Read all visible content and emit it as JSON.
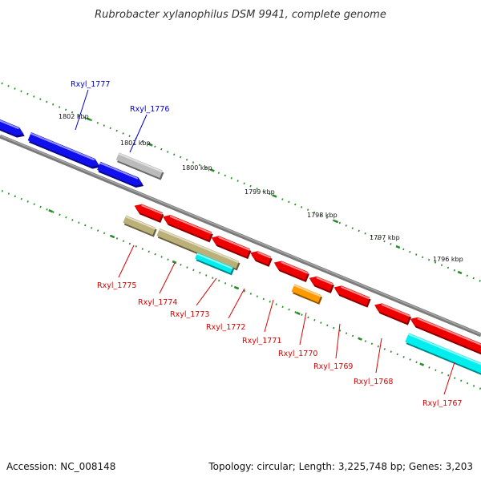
{
  "title": "Rubrobacter xylanophilus DSM 9941, complete genome",
  "footer": {
    "accession": "Accession: NC_008148",
    "topology": "Topology: circular; Length: 3,225,748 bp; Genes: 3,203"
  },
  "colors": {
    "backbone": "#808080",
    "tick": "#2a8a2a",
    "plus_label": "#0000cc",
    "minus_label": "#dd0000",
    "blue": "#1010ee",
    "grey": "#bbbbbb",
    "red": "#ee0000",
    "olive": "#bbb077",
    "cyan": "#00eeee",
    "orange": "#ff9900"
  },
  "scale_kbp": [
    "1802 kbp",
    "1801 kbp",
    "1800 kbp",
    "1799 kbp",
    "1798 kbp",
    "1797 kbp",
    "1796 kbp"
  ],
  "genes": {
    "forward": [
      {
        "label": "Rxyl_1777",
        "color": "blue"
      },
      {
        "label": "Rxyl_1776",
        "color": "grey"
      }
    ],
    "reverse": [
      {
        "label": "Rxyl_1775",
        "color": "olive"
      },
      {
        "label": "Rxyl_1774",
        "color": "olive"
      },
      {
        "label": "Rxyl_1773",
        "color": "cyan"
      },
      {
        "label": "Rxyl_1772",
        "color": "red"
      },
      {
        "label": "Rxyl_1771",
        "color": "red"
      },
      {
        "label": "Rxyl_1770",
        "color": "orange"
      },
      {
        "label": "Rxyl_1769",
        "color": "red"
      },
      {
        "label": "Rxyl_1768",
        "color": "red"
      },
      {
        "label": "Rxyl_1767",
        "color": "cyan"
      }
    ]
  }
}
